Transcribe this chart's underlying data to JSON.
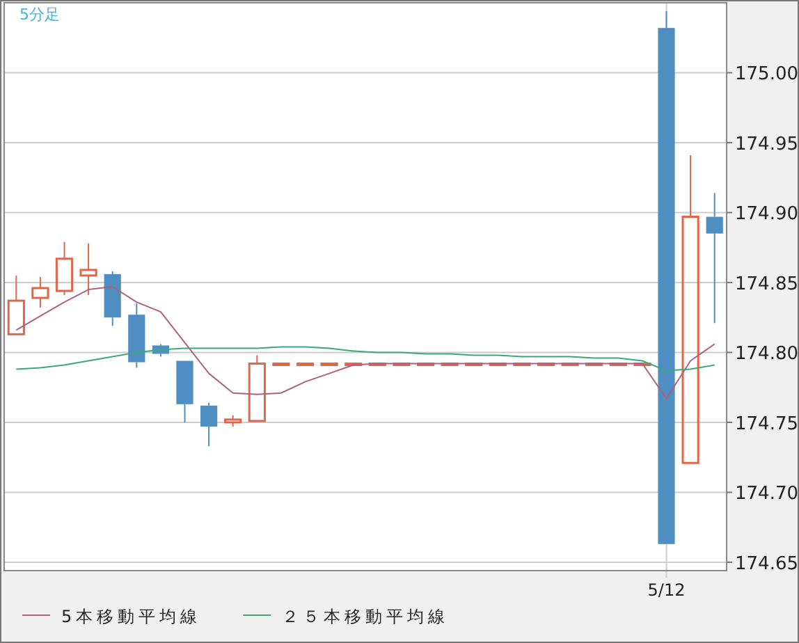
{
  "chart_data": {
    "type": "candlestick",
    "title": "5分足",
    "categories": [
      null,
      null,
      null,
      null,
      null,
      null,
      null,
      null,
      null,
      null,
      null,
      null,
      null,
      null,
      null,
      null,
      null,
      null,
      null,
      null,
      null,
      null,
      null,
      null,
      null,
      null,
      null,
      "5/12",
      null,
      null
    ],
    "ohlc": [
      [
        174.813,
        174.855,
        174.813,
        174.837
      ],
      [
        174.839,
        174.854,
        174.832,
        174.846
      ],
      [
        174.844,
        174.879,
        174.841,
        174.867
      ],
      [
        174.855,
        174.878,
        174.841,
        174.859
      ],
      [
        174.856,
        174.858,
        174.819,
        174.825
      ],
      [
        174.827,
        174.835,
        174.789,
        174.793
      ],
      [
        174.805,
        174.806,
        174.797,
        174.799
      ],
      [
        174.794,
        174.794,
        174.75,
        174.763
      ],
      [
        174.762,
        174.764,
        174.733,
        174.747
      ],
      [
        174.75,
        174.755,
        174.747,
        174.752
      ],
      [
        174.751,
        174.798,
        174.751,
        174.792
      ],
      [
        174.792,
        174.792,
        174.792,
        174.792
      ],
      [
        174.792,
        174.792,
        174.792,
        174.792
      ],
      [
        174.792,
        174.792,
        174.792,
        174.792
      ],
      [
        174.792,
        174.792,
        174.792,
        174.792
      ],
      [
        174.792,
        174.792,
        174.792,
        174.792
      ],
      [
        174.792,
        174.792,
        174.792,
        174.792
      ],
      [
        174.792,
        174.792,
        174.792,
        174.792
      ],
      [
        174.792,
        174.792,
        174.792,
        174.792
      ],
      [
        174.792,
        174.792,
        174.792,
        174.792
      ],
      [
        174.792,
        174.792,
        174.792,
        174.792
      ],
      [
        174.792,
        174.792,
        174.792,
        174.792
      ],
      [
        174.792,
        174.792,
        174.792,
        174.792
      ],
      [
        174.792,
        174.792,
        174.792,
        174.792
      ],
      [
        174.792,
        174.792,
        174.792,
        174.792
      ],
      [
        174.792,
        174.792,
        174.792,
        174.792
      ],
      [
        174.792,
        174.792,
        174.792,
        174.792
      ],
      [
        175.032,
        175.044,
        174.663,
        174.663
      ],
      [
        174.721,
        174.941,
        174.721,
        174.897
      ],
      [
        174.897,
        174.914,
        174.821,
        174.885
      ]
    ],
    "colors": [
      "#e0664a",
      "#e0664a",
      "#e0664a",
      "#e0664a",
      "#4f8ec2",
      "#4f8ec2",
      "#4f8ec2",
      "#4f8ec2",
      "#4f8ec2",
      "#e0664a",
      "#e0664a",
      "#e0664a",
      "#e0664a",
      "#e0664a",
      "#e0664a",
      "#e0664a",
      "#e0664a",
      "#e0664a",
      "#e0664a",
      "#e0664a",
      "#e0664a",
      "#e0664a",
      "#e0664a",
      "#e0664a",
      "#e0664a",
      "#e0664a",
      "#e0664a",
      "#4f8ec2",
      "#e0664a",
      "#4f8ec2"
    ],
    "series": [
      {
        "type": "line",
        "name": "5本移動平均線",
        "color": "#b0607e",
        "values": [
          174.816,
          174.826,
          174.836,
          174.845,
          174.847,
          174.836,
          174.829,
          174.807,
          174.785,
          174.771,
          174.77,
          174.771,
          174.779,
          174.785,
          174.791,
          174.792,
          174.792,
          174.792,
          174.792,
          174.792,
          174.792,
          174.792,
          174.792,
          174.792,
          174.792,
          174.792,
          174.792,
          174.767,
          174.794,
          174.806
        ]
      },
      {
        "type": "line",
        "name": "２５本移動平均線",
        "color": "#3aa878",
        "values": [
          174.788,
          174.789,
          174.791,
          174.794,
          174.797,
          174.8,
          174.802,
          174.803,
          174.803,
          174.803,
          174.803,
          174.804,
          174.804,
          174.803,
          174.801,
          174.8,
          174.8,
          174.799,
          174.799,
          174.798,
          174.798,
          174.797,
          174.797,
          174.797,
          174.796,
          174.796,
          174.794,
          174.787,
          174.788,
          174.791
        ]
      }
    ],
    "ylim": [
      174.644,
      175.05
    ],
    "yticks": [
      174.65,
      {
        "value": 174.7,
        "label": "174.70"
      },
      174.75,
      {
        "value": 174.8,
        "label": "174.80"
      },
      174.85,
      {
        "value": 174.9,
        "label": "174.90"
      },
      174.95,
      {
        "value": 175.0,
        "label": "175.00"
      }
    ],
    "grid": true,
    "legend": "bottom"
  }
}
